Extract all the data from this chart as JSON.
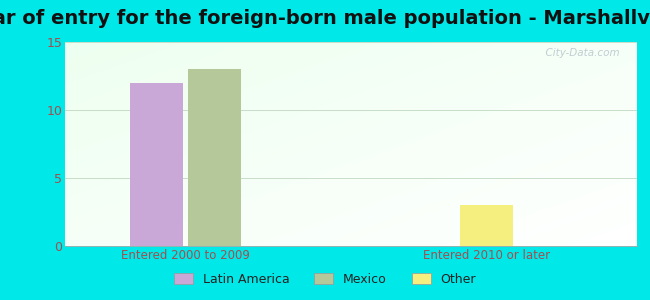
{
  "title": "Year of entry for the foreign-born male population - Marshallville",
  "groups": [
    "Entered 2000 to 2009",
    "Entered 2010 or later"
  ],
  "series": {
    "Latin America": [
      12,
      0
    ],
    "Mexico": [
      13,
      0
    ],
    "Other": [
      0,
      3
    ]
  },
  "bar_colors": {
    "Latin America": "#c9a8d8",
    "Mexico": "#b5c899",
    "Other": "#f5ef80"
  },
  "ylim": [
    0,
    15
  ],
  "yticks": [
    0,
    5,
    10,
    15
  ],
  "background_outer": "#00e8e8",
  "title_fontsize": 14,
  "axis_label_color": "#a05050",
  "watermark": "  City-Data.com",
  "bar_width": 0.35,
  "group_centers": [
    1.0,
    3.0
  ],
  "xlim": [
    0.2,
    4.0
  ]
}
